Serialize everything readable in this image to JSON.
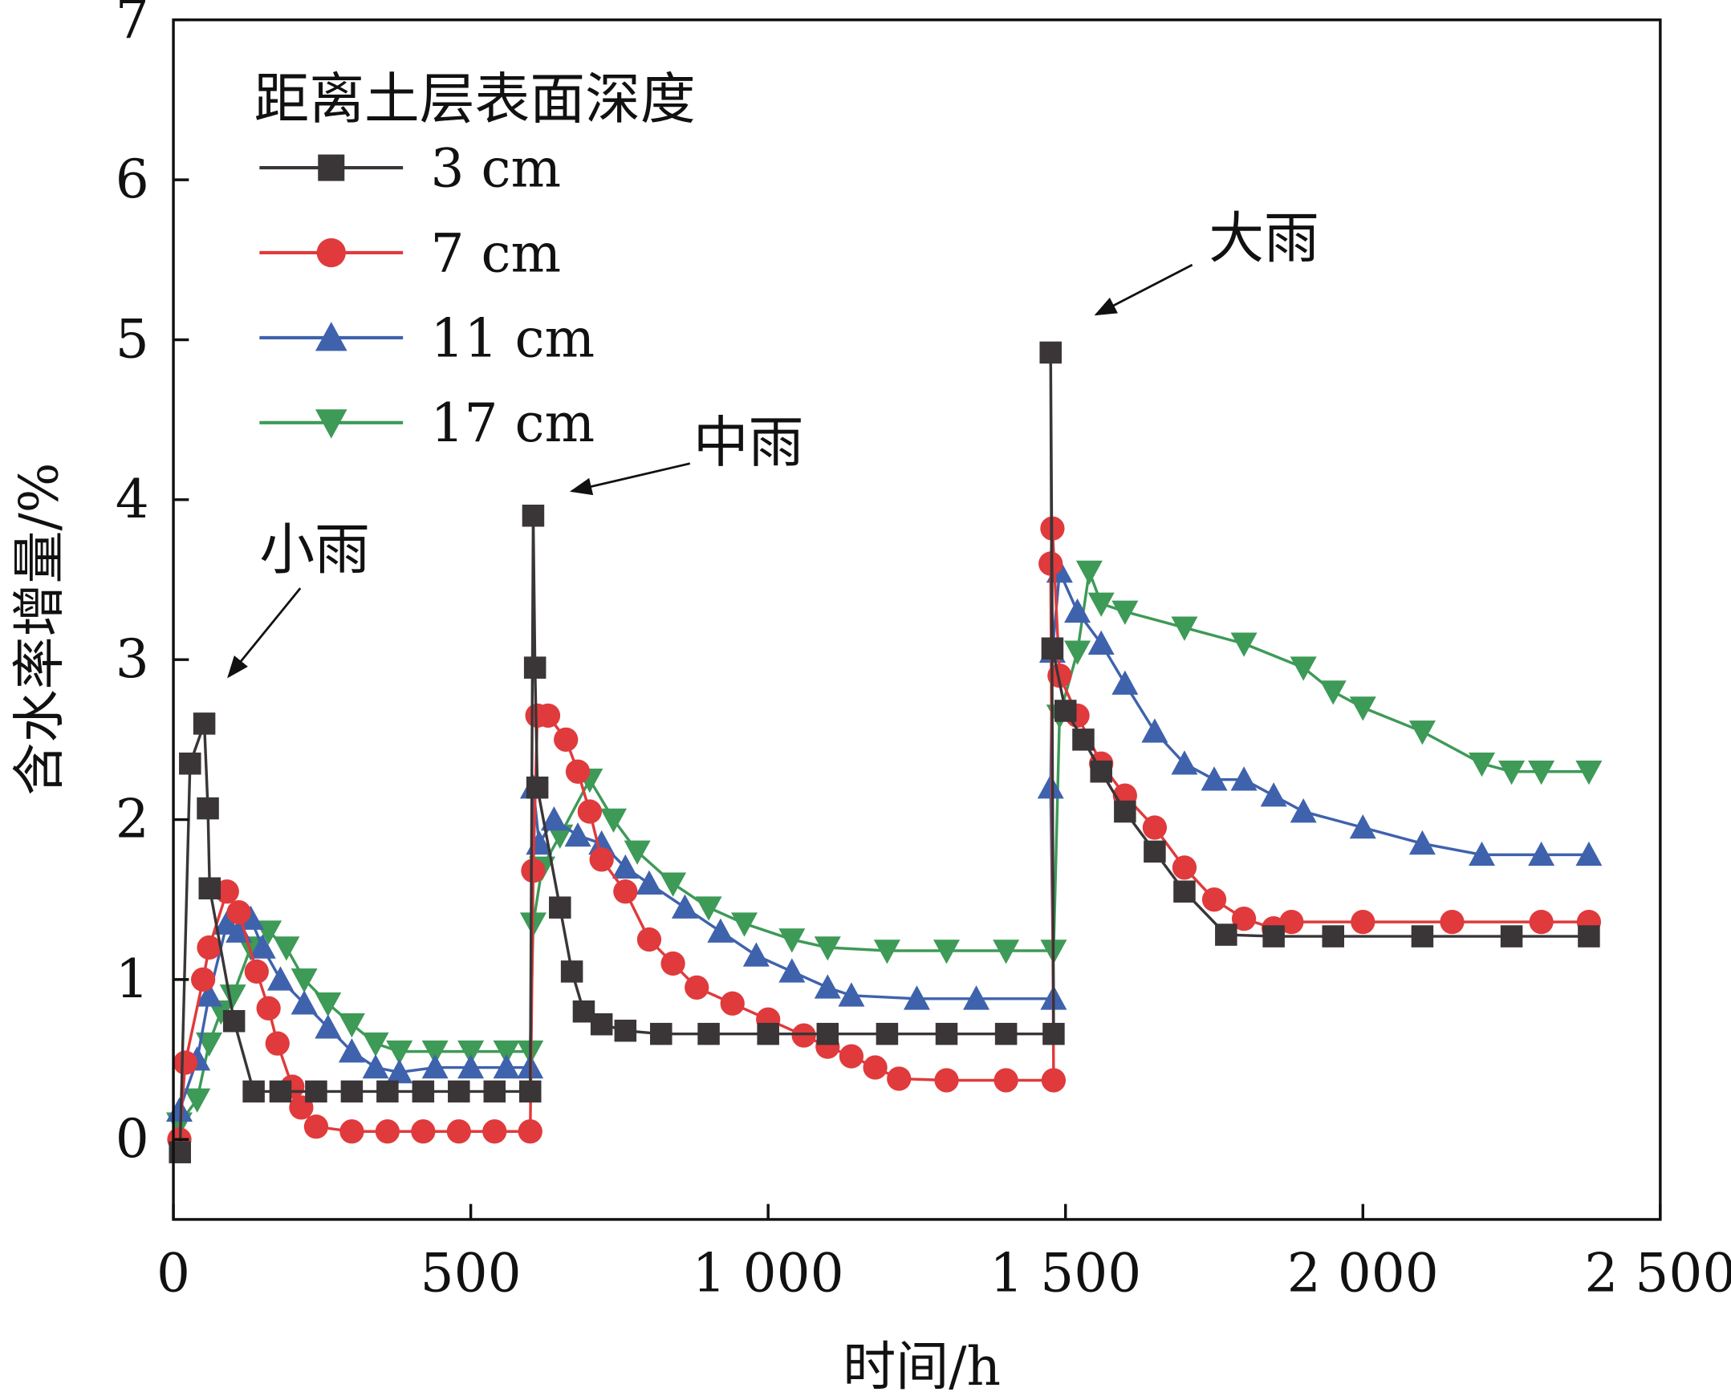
{
  "chart_data": {
    "type": "line",
    "title": "",
    "xlabel": "时间/h",
    "ylabel": "含水率增量/%",
    "xlim": [
      0,
      2500
    ],
    "ylim": [
      -0.5,
      7
    ],
    "xticks": [
      {
        "v": 0,
        "label": "0"
      },
      {
        "v": 500,
        "label": "500"
      },
      {
        "v": 1000,
        "label": "1 000"
      },
      {
        "v": 1500,
        "label": "1 500"
      },
      {
        "v": 2000,
        "label": "2 000"
      },
      {
        "v": 2500,
        "label": "2 500"
      }
    ],
    "yticks": [
      {
        "v": 0,
        "label": "0"
      },
      {
        "v": 1,
        "label": "1"
      },
      {
        "v": 2,
        "label": "2"
      },
      {
        "v": 3,
        "label": "3"
      },
      {
        "v": 4,
        "label": "4"
      },
      {
        "v": 5,
        "label": "5"
      },
      {
        "v": 6,
        "label": "6"
      },
      {
        "v": 7,
        "label": "7"
      }
    ],
    "legend": {
      "title": "距离土层表面深度",
      "placement": "top-left"
    },
    "annotations": [
      {
        "text": "小雨",
        "x": 70,
        "y": 3.0
      },
      {
        "text": "中雨",
        "x": 670,
        "y": 4.05
      },
      {
        "text": "大雨",
        "x": 1550,
        "y": 5.15
      }
    ],
    "series": [
      {
        "name": "3 cm",
        "color": "#3a3536",
        "marker": "square",
        "x": [
          11,
          28,
          52,
          58,
          61,
          102,
          135,
          180,
          240,
          300,
          360,
          420,
          480,
          540,
          600,
          605,
          608,
          612,
          650,
          670,
          690,
          720,
          760,
          820,
          900,
          1000,
          1100,
          1200,
          1300,
          1400,
          1480,
          1475,
          1478,
          1500,
          1530,
          1560,
          1600,
          1650,
          1700,
          1770,
          1850,
          1950,
          2100,
          2250,
          2380
        ],
        "y": [
          -0.08,
          2.35,
          2.6,
          2.07,
          1.57,
          0.74,
          0.3,
          0.3,
          0.3,
          0.3,
          0.3,
          0.3,
          0.3,
          0.3,
          0.3,
          3.9,
          2.95,
          2.2,
          1.45,
          1.05,
          0.8,
          0.72,
          0.68,
          0.66,
          0.66,
          0.66,
          0.66,
          0.66,
          0.66,
          0.66,
          0.66,
          4.92,
          3.07,
          2.68,
          2.5,
          2.3,
          2.05,
          1.8,
          1.55,
          1.28,
          1.27,
          1.27,
          1.27,
          1.27,
          1.27
        ]
      },
      {
        "name": "7 cm",
        "color": "#e03a3c",
        "marker": "circle",
        "x": [
          10,
          20,
          50,
          60,
          90,
          110,
          140,
          160,
          175,
          200,
          215,
          240,
          300,
          360,
          420,
          480,
          540,
          600,
          605,
          612,
          630,
          660,
          680,
          700,
          720,
          760,
          800,
          840,
          880,
          940,
          1000,
          1060,
          1100,
          1140,
          1180,
          1220,
          1300,
          1400,
          1480,
          1475,
          1478,
          1490,
          1520,
          1560,
          1600,
          1650,
          1700,
          1750,
          1800,
          1850,
          1880,
          2000,
          2150,
          2300,
          2380
        ],
        "y": [
          0.0,
          0.48,
          1.0,
          1.2,
          1.55,
          1.42,
          1.05,
          0.82,
          0.6,
          0.33,
          0.2,
          0.08,
          0.05,
          0.05,
          0.05,
          0.05,
          0.05,
          0.05,
          1.68,
          2.65,
          2.65,
          2.5,
          2.3,
          2.05,
          1.75,
          1.55,
          1.25,
          1.1,
          0.95,
          0.85,
          0.75,
          0.65,
          0.58,
          0.52,
          0.45,
          0.38,
          0.37,
          0.37,
          0.37,
          3.6,
          3.82,
          2.9,
          2.65,
          2.35,
          2.15,
          1.95,
          1.7,
          1.5,
          1.38,
          1.32,
          1.36,
          1.36,
          1.36,
          1.36,
          1.36
        ]
      },
      {
        "name": "11 cm",
        "color": "#3f62ad",
        "marker": "triangle-up",
        "x": [
          10,
          40,
          60,
          90,
          110,
          130,
          150,
          180,
          220,
          260,
          300,
          340,
          380,
          440,
          500,
          560,
          600,
          605,
          615,
          640,
          680,
          720,
          760,
          800,
          860,
          920,
          980,
          1040,
          1100,
          1140,
          1250,
          1350,
          1480,
          1475,
          1478,
          1490,
          1520,
          1560,
          1600,
          1650,
          1700,
          1750,
          1800,
          1850,
          1900,
          2000,
          2100,
          2200,
          2300,
          2380
        ],
        "y": [
          0.18,
          0.5,
          0.9,
          1.35,
          1.3,
          1.38,
          1.2,
          1.0,
          0.85,
          0.7,
          0.55,
          0.45,
          0.42,
          0.45,
          0.45,
          0.45,
          0.45,
          2.2,
          1.85,
          2.0,
          1.9,
          1.85,
          1.7,
          1.6,
          1.45,
          1.3,
          1.15,
          1.05,
          0.95,
          0.9,
          0.88,
          0.88,
          0.88,
          2.2,
          3.05,
          3.55,
          3.3,
          3.1,
          2.85,
          2.55,
          2.35,
          2.25,
          2.25,
          2.15,
          2.05,
          1.95,
          1.85,
          1.78,
          1.78,
          1.78
        ]
      },
      {
        "name": "17 cm",
        "color": "#3d9a57",
        "marker": "triangle-down",
        "x": [
          10,
          40,
          60,
          80,
          100,
          130,
          160,
          190,
          220,
          260,
          300,
          340,
          380,
          440,
          500,
          560,
          600,
          605,
          620,
          650,
          700,
          740,
          780,
          840,
          900,
          960,
          1040,
          1100,
          1200,
          1300,
          1400,
          1480,
          1490,
          1520,
          1540,
          1560,
          1600,
          1700,
          1800,
          1900,
          1950,
          2000,
          2100,
          2200,
          2250,
          2300,
          2380
        ],
        "y": [
          0.1,
          0.25,
          0.6,
          0.8,
          0.9,
          1.2,
          1.3,
          1.2,
          1.0,
          0.85,
          0.72,
          0.6,
          0.55,
          0.55,
          0.55,
          0.55,
          0.55,
          1.35,
          1.7,
          1.9,
          2.25,
          2.0,
          1.8,
          1.6,
          1.45,
          1.35,
          1.25,
          1.2,
          1.18,
          1.18,
          1.18,
          1.18,
          2.65,
          3.05,
          3.55,
          3.35,
          3.3,
          3.2,
          3.1,
          2.95,
          2.8,
          2.7,
          2.55,
          2.35,
          2.3,
          2.3,
          2.3
        ]
      }
    ]
  }
}
